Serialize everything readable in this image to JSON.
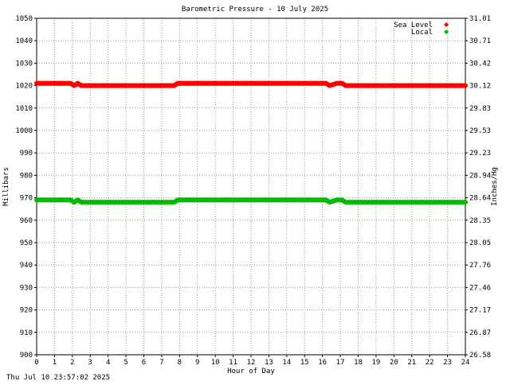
{
  "chart_data": {
    "type": "line",
    "title": "Barometric Pressure - 10 July 2025",
    "xlabel": "Hour of Day",
    "ylabel_left": "Millibars",
    "ylabel_right": "Inches/Hg",
    "xlim": [
      0,
      24
    ],
    "ylim": [
      900,
      1050
    ],
    "x_ticks": [
      "0",
      "1",
      "2",
      "3",
      "4",
      "5",
      "6",
      "7",
      "8",
      "9",
      "10",
      "11",
      "12",
      "13",
      "14",
      "15",
      "16",
      "17",
      "18",
      "19",
      "20",
      "21",
      "22",
      "23",
      "24"
    ],
    "y_ticks_left": [
      "900",
      "910",
      "920",
      "930",
      "940",
      "950",
      "960",
      "970",
      "980",
      "990",
      "1000",
      "1010",
      "1020",
      "1030",
      "1040",
      "1050"
    ],
    "y_ticks_right": [
      "26.58",
      "26.87",
      "27.17",
      "27.46",
      "27.76",
      "28.05",
      "28.35",
      "28.64",
      "28.94",
      "29.23",
      "29.53",
      "29.83",
      "30.12",
      "30.42",
      "30.71",
      "31.01"
    ],
    "grid": true,
    "legend_position": "top-right",
    "series": [
      {
        "name": "Sea Level",
        "color": "#ff0000",
        "x": [
          0,
          1.9,
          2.1,
          2.3,
          2.5,
          7.7,
          7.9,
          16.2,
          16.4,
          16.8,
          17.1,
          17.3,
          24
        ],
        "values": [
          1021,
          1021,
          1020,
          1021,
          1020,
          1020,
          1021,
          1021,
          1020,
          1021,
          1021,
          1020,
          1020
        ]
      },
      {
        "name": "Local",
        "color": "#00bb00",
        "x": [
          0,
          1.9,
          2.1,
          2.3,
          2.5,
          7.7,
          7.9,
          16.2,
          16.4,
          16.8,
          17.1,
          17.3,
          24
        ],
        "values": [
          969,
          969,
          968,
          969,
          968,
          968,
          969,
          969,
          968,
          969,
          969,
          968,
          968
        ]
      }
    ]
  },
  "footer": {
    "timestamp": "Thu Jul 10 23:57:02 2025"
  }
}
